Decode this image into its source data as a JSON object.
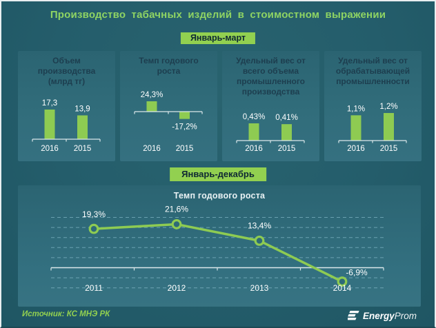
{
  "title": "Производство табачных изделий в стоимостном выражении",
  "badges": {
    "top": "Январь-март",
    "bottom": "Январь-декабрь"
  },
  "colors": {
    "background": "#245d6b",
    "panel": "#316d7b",
    "accent_green": "#8ecb52",
    "badge_green": "#92d050",
    "title_green": "#8fd463",
    "header_text": "#1d3e4f",
    "white_text": "#ffffff",
    "gridline": "#9ccfde",
    "axis": "#dce8eb"
  },
  "chart_data": [
    {
      "type": "bar",
      "title_lines": [
        "Объем",
        "производства",
        "(млрд тг)"
      ],
      "categories": [
        "2016",
        "2015"
      ],
      "values": [
        17.3,
        13.9
      ],
      "value_labels": [
        "17,3",
        "13,9"
      ]
    },
    {
      "type": "bar",
      "title_lines": [
        "Темп годового",
        "роста"
      ],
      "categories": [
        "2016",
        "2015"
      ],
      "values": [
        24.3,
        -17.2
      ],
      "value_labels": [
        "24,3%",
        "-17,2%"
      ]
    },
    {
      "type": "bar",
      "title_lines": [
        "Удельный вес от",
        "всего объема",
        "промышленного",
        "производства"
      ],
      "categories": [
        "2016",
        "2015"
      ],
      "values": [
        0.43,
        0.41
      ],
      "value_labels": [
        "0,43%",
        "0,41%"
      ]
    },
    {
      "type": "bar",
      "title_lines": [
        "Удельный вес от",
        "обрабатывающей",
        "промышленности"
      ],
      "categories": [
        "2016",
        "2015"
      ],
      "values": [
        1.1,
        1.2
      ],
      "value_labels": [
        "1,1%",
        "1,2%"
      ]
    },
    {
      "type": "line",
      "title": "Темп годового роста",
      "categories": [
        "2011",
        "2012",
        "2013",
        "2014"
      ],
      "values": [
        19.3,
        21.6,
        13.4,
        -6.9
      ],
      "value_labels": [
        "19,3%",
        "21,6%",
        "13,4%",
        "-6,9%"
      ],
      "ylim": [
        -12.5,
        27.5
      ],
      "grid_interval": 5,
      "grid_on": true,
      "legend": "none"
    }
  ],
  "footer": {
    "source": "Источник: КС МНЭ РК",
    "logo_bold": "Energy",
    "logo_light": "Prom"
  }
}
